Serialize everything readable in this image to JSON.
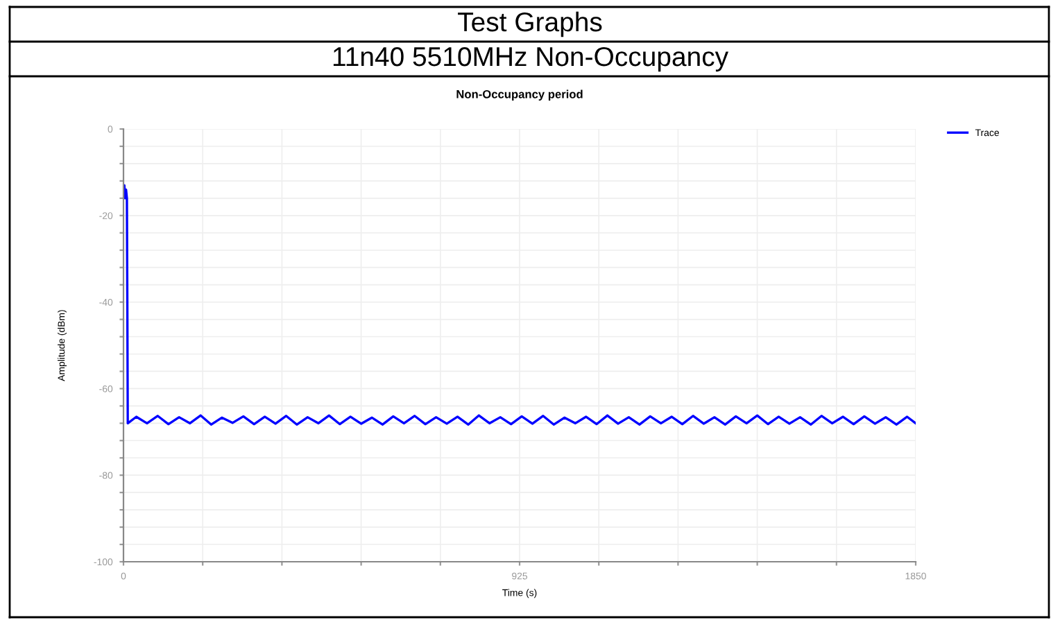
{
  "chart_data": {
    "type": "line",
    "title": "Non-Occupancy period",
    "annotations": [
      "Test Graphs",
      "11n40 5510MHz Non-Occupancy"
    ],
    "xlabel": "Time (s)",
    "ylabel": "Amplitude (dBm)",
    "xlim": [
      0,
      1850
    ],
    "xticks": [
      0,
      {
        "value": 185,
        "label": null
      },
      {
        "value": 370,
        "label": null
      },
      {
        "value": 555,
        "label": null
      },
      {
        "value": 740,
        "label": null
      },
      925,
      {
        "value": 1110,
        "label": null
      },
      {
        "value": 1295,
        "label": null
      },
      {
        "value": 1480,
        "label": null
      },
      {
        "value": 1665,
        "label": null
      },
      1850
    ],
    "ylim": [
      -100,
      0
    ],
    "yticks": [
      -100,
      {
        "value": -96,
        "label": null
      },
      {
        "value": -92,
        "label": null
      },
      {
        "value": -88,
        "label": null
      },
      {
        "value": -84,
        "label": null
      },
      -80,
      {
        "value": -76,
        "label": null
      },
      {
        "value": -72,
        "label": null
      },
      {
        "value": -68,
        "label": null
      },
      {
        "value": -64,
        "label": null
      },
      -60,
      {
        "value": -56,
        "label": null
      },
      {
        "value": -52,
        "label": null
      },
      {
        "value": -48,
        "label": null
      },
      {
        "value": -44,
        "label": null
      },
      -40,
      {
        "value": -36,
        "label": null
      },
      {
        "value": -32,
        "label": null
      },
      {
        "value": -28,
        "label": null
      },
      {
        "value": -24,
        "label": null
      },
      -20,
      {
        "value": -16,
        "label": null
      },
      {
        "value": -12,
        "label": null
      },
      {
        "value": -8,
        "label": null
      },
      {
        "value": -4,
        "label": null
      },
      0
    ],
    "grid": true,
    "legend": "top right",
    "series": [
      {
        "name": "Trace",
        "color": "#0000ff",
        "x": [
          0,
          2,
          4,
          6,
          8,
          9,
          10,
          30,
          55,
          80,
          105,
          130,
          155,
          180,
          205,
          230,
          255,
          280,
          305,
          330,
          355,
          380,
          405,
          430,
          455,
          480,
          505,
          530,
          555,
          580,
          605,
          630,
          655,
          680,
          705,
          730,
          755,
          780,
          805,
          830,
          855,
          880,
          905,
          930,
          955,
          980,
          1005,
          1030,
          1055,
          1080,
          1105,
          1130,
          1155,
          1180,
          1205,
          1230,
          1255,
          1280,
          1305,
          1330,
          1355,
          1380,
          1405,
          1430,
          1455,
          1480,
          1505,
          1530,
          1555,
          1580,
          1605,
          1630,
          1655,
          1680,
          1705,
          1730,
          1755,
          1780,
          1805,
          1830,
          1850
        ],
        "values": [
          -15,
          -13,
          -16,
          -14,
          -16,
          -40,
          -68,
          -66.5,
          -68,
          -66.3,
          -68.2,
          -66.6,
          -68,
          -66.2,
          -68.3,
          -66.7,
          -67.9,
          -66.4,
          -68.2,
          -66.5,
          -68.1,
          -66.3,
          -68.3,
          -66.6,
          -68,
          -66.2,
          -68.2,
          -66.5,
          -68.1,
          -66.7,
          -68.3,
          -66.4,
          -68,
          -66.3,
          -68.2,
          -66.6,
          -68.1,
          -66.5,
          -68.3,
          -66.2,
          -68,
          -66.6,
          -68.2,
          -66.4,
          -68.1,
          -66.3,
          -68.3,
          -66.7,
          -68,
          -66.5,
          -68.2,
          -66.2,
          -68.1,
          -66.6,
          -68.3,
          -66.4,
          -68,
          -66.5,
          -68.2,
          -66.3,
          -68.1,
          -66.6,
          -68.3,
          -66.4,
          -68,
          -66.2,
          -68.2,
          -66.5,
          -68.1,
          -66.6,
          -68.3,
          -66.3,
          -68,
          -66.5,
          -68.2,
          -66.4,
          -68.1,
          -66.6,
          -68.3,
          -66.5,
          -68
        ]
      }
    ]
  }
}
